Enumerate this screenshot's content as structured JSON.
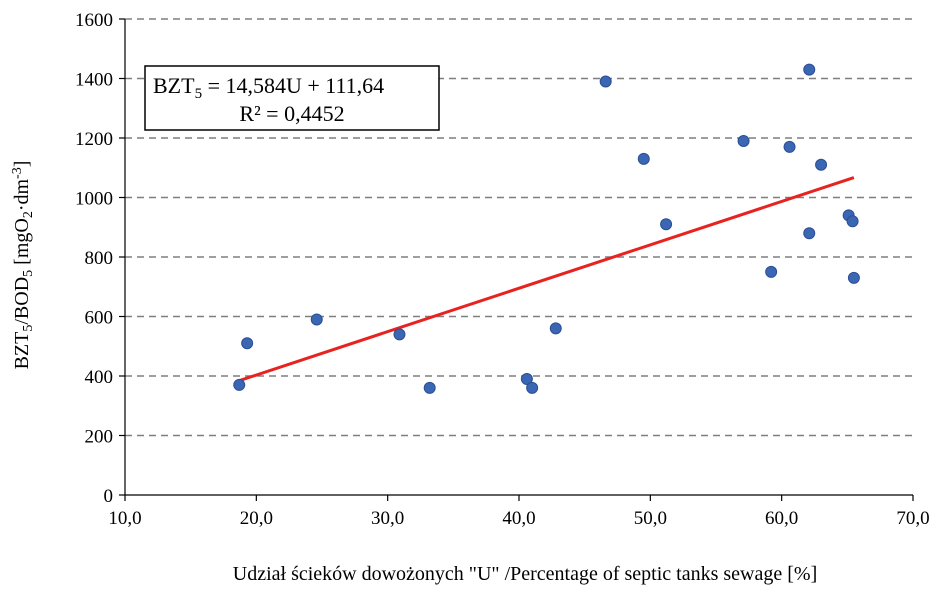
{
  "chart_data": {
    "type": "scatter",
    "title": "",
    "xlabel": "Udział ścieków dowożonych \"U\" /Percentage of septic tanks sewage [%]",
    "ylabel": {
      "p1": "BZT",
      "s1": "5",
      "p2": "/BOD",
      "s2": "5",
      "p3": " [mgO",
      "s3": "2",
      "p4": "·dm",
      "sup": "-3",
      "p5": "]"
    },
    "xlim": [
      10,
      70
    ],
    "ylim": [
      0,
      1600
    ],
    "x_ticks": [
      10,
      20,
      30,
      40,
      50,
      60,
      70
    ],
    "x_tick_labels": [
      "10,0",
      "20,0",
      "30,0",
      "40,0",
      "50,0",
      "60,0",
      "70,0"
    ],
    "y_ticks": [
      0,
      200,
      400,
      600,
      800,
      1000,
      1200,
      1400,
      1600
    ],
    "y_tick_labels": [
      "0",
      "200",
      "400",
      "600",
      "800",
      "1000",
      "1200",
      "1400",
      "1600"
    ],
    "grid": "horizontal dashed",
    "points": [
      {
        "x": 18.7,
        "y": 370
      },
      {
        "x": 19.3,
        "y": 510
      },
      {
        "x": 24.6,
        "y": 590
      },
      {
        "x": 30.9,
        "y": 540
      },
      {
        "x": 33.2,
        "y": 360
      },
      {
        "x": 40.6,
        "y": 390
      },
      {
        "x": 41.0,
        "y": 360
      },
      {
        "x": 42.8,
        "y": 560
      },
      {
        "x": 46.6,
        "y": 1390
      },
      {
        "x": 49.5,
        "y": 1130
      },
      {
        "x": 51.2,
        "y": 910
      },
      {
        "x": 57.1,
        "y": 1190
      },
      {
        "x": 59.2,
        "y": 750
      },
      {
        "x": 60.6,
        "y": 1170
      },
      {
        "x": 62.1,
        "y": 880
      },
      {
        "x": 62.1,
        "y": 1430
      },
      {
        "x": 63.0,
        "y": 1110
      },
      {
        "x": 65.1,
        "y": 940
      },
      {
        "x": 65.4,
        "y": 920
      },
      {
        "x": 65.5,
        "y": 730
      }
    ],
    "trendline": {
      "slope": 14.584,
      "intercept": 111.64,
      "x_range": [
        18.7,
        65.5
      ]
    },
    "equation": {
      "eq_p1": "BZT",
      "eq_sub": "5",
      "eq_p2": " = 14,584U + 111,64",
      "r2": "R² = 0,4452"
    },
    "colors": {
      "points": "#3a66b4",
      "points_edge": "#2a4f94",
      "trendline": "#e8221f",
      "grid": "#7f7f7f",
      "axis": "#000000"
    }
  }
}
